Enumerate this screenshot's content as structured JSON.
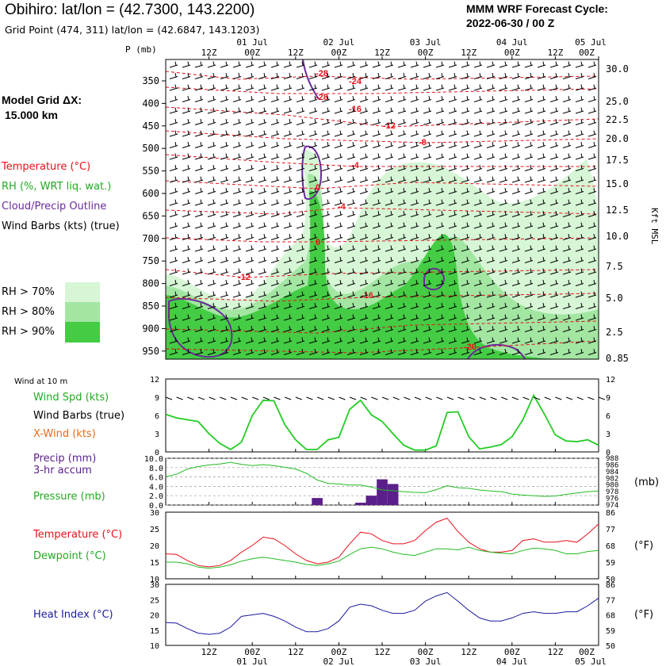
{
  "header": {
    "station": "Obihiro:  lat/lon = (42.7300, 143.2200)",
    "grid_point": "Grid Point (474, 311) lat/lon = (42.6847, 143.1203)",
    "cycle_label": "MMM WRF Forecast Cycle:",
    "cycle_value": "2022-06-30 / 00  Z",
    "model_grid_label": "Model Grid ΔX:",
    "model_grid_value": "15.000 km"
  },
  "legend": {
    "temperature": "Temperature (°C)",
    "rh": "RH (%, WRT liq. wat.)",
    "cloud": "Cloud/Precip Outline",
    "barbs": "Wind Barbs (kts) (true)",
    "rh70": "RH > 70%",
    "rh80": "RH > 80%",
    "rh90": "RH > 90%",
    "pressure_axis": "P (mb)",
    "height_axis": "Kft MSL",
    "wind10": "Wind at 10 m",
    "wind_spd": "Wind Spd (kts)",
    "wind_barbs": "Wind Barbs (true)",
    "xwind": "X-Wind (kts)",
    "precip": "Precip (mm)",
    "precip2": "3-hr accum",
    "pressure": "Pressure (mb)",
    "pressure_unit": "(mb)",
    "temp": "Temperature (°C)",
    "dewpoint": "Dewpoint (°C)",
    "heat_index": "Heat Index (°C)",
    "f_unit": "(°F)"
  },
  "colors": {
    "temp": "#e8101a",
    "rh": "#1ec81e",
    "cloud": "#6a2a9a",
    "precip": "#5a1f8a",
    "heat": "#1a1aa0",
    "dew": "#22bb22",
    "rh70": "#d6f6d6",
    "rh80": "#a2e6a2",
    "rh90": "#44cc44"
  },
  "chart_data": [
    {
      "type": "heatmap",
      "name": "time-height cross section",
      "time_labels_top": [
        "12Z",
        "00Z",
        "12Z",
        "00Z",
        "12Z",
        "00Z",
        "12Z",
        "00Z",
        "12Z",
        "00Z"
      ],
      "date_labels_top": [
        "01 Jul",
        "02 Jul",
        "03 Jul",
        "04 Jul",
        "05 Jul"
      ],
      "pressure_levels": [
        350,
        400,
        450,
        500,
        550,
        600,
        650,
        700,
        750,
        800,
        850,
        900,
        950
      ],
      "height_kft": [
        "30.0",
        "25.0",
        "22.5",
        "20.0",
        "17.5",
        "15.0",
        "12.5",
        "10.0",
        "7.5",
        "5.0",
        "2.5",
        "0.85"
      ],
      "temperature_contour_labels": [
        "-28",
        "-24",
        "-28",
        "-16",
        "-12",
        "-8",
        "-4",
        "0",
        "-4",
        "0",
        "-12",
        "-16",
        "-20"
      ]
    },
    {
      "type": "line",
      "name": "10 m wind speed",
      "ylim": [
        0,
        12
      ],
      "yticks": [
        0,
        3,
        6,
        9,
        12
      ],
      "hours": [
        0,
        3,
        6,
        9,
        12,
        15,
        18,
        21,
        24,
        27,
        30,
        33,
        36,
        39,
        42,
        45,
        48,
        51,
        54,
        57,
        60,
        63,
        66,
        69,
        72,
        75,
        78,
        81,
        84,
        87,
        90,
        93,
        96,
        99,
        102,
        105,
        108,
        111,
        114,
        117,
        120
      ],
      "wind_spd": [
        6.2,
        5.6,
        5.3,
        5.0,
        3.0,
        1.4,
        0.4,
        1.6,
        6.0,
        8.5,
        8.4,
        4.5,
        2.0,
        0.4,
        0.4,
        2.0,
        2.4,
        7.0,
        8.5,
        6.1,
        5.0,
        3.0,
        1.1,
        0.3,
        0.3,
        1.0,
        6.5,
        6.6,
        2.5,
        0.5,
        0.8,
        1.2,
        2.5,
        5.3,
        9.3,
        6.2,
        2.8,
        1.8,
        1.7,
        2.0,
        1.1
      ]
    },
    {
      "type": "bar",
      "name": "3-hr precip and pressure",
      "precip_ylim": [
        0,
        10
      ],
      "precip_ticks": [
        "0.0",
        "2.0",
        "4.0",
        "6.0",
        "8.0",
        "10.0"
      ],
      "pressure_ticks": [
        "974",
        "976",
        "978",
        "980",
        "982",
        "984",
        "986",
        "988"
      ],
      "pressure_ylim": [
        974,
        988
      ],
      "precip_hours": [
        42,
        54,
        57,
        60,
        63
      ],
      "precip_values": [
        1.5,
        0.5,
        2.0,
        5.5,
        4.5
      ],
      "pressure": [
        982.5,
        983.2,
        984.8,
        985.5,
        986.0,
        986.3,
        986.8,
        986.2,
        985.8,
        986.1,
        985.8,
        985.3,
        984.8,
        983.5,
        981.5,
        980.5,
        980.3,
        980.0,
        980.0,
        979.4,
        978.5,
        978.3,
        978.0,
        977.8,
        977.7,
        978.6,
        979.8,
        979.2,
        979.0,
        978.5,
        978.2,
        978.0,
        977.3,
        977.0,
        976.8,
        976.6,
        976.7,
        977.2,
        977.6,
        978.0,
        978.2
      ]
    },
    {
      "type": "line",
      "name": "temperature and dewpoint",
      "ylim": [
        10,
        30
      ],
      "yticks": [
        10,
        15,
        20,
        25,
        30
      ],
      "fticks": [
        50,
        59,
        68,
        77,
        86
      ],
      "temperature": [
        17.5,
        17.3,
        15.5,
        14.0,
        13.6,
        14.0,
        15.5,
        18.0,
        20.0,
        22.5,
        22.0,
        20.0,
        17.5,
        15.5,
        14.5,
        15.0,
        16.5,
        20.5,
        24.0,
        23.5,
        21.5,
        20.5,
        20.5,
        21.5,
        24.5,
        27.0,
        28.2,
        24.2,
        21.0,
        19.0,
        18.0,
        18.0,
        18.5,
        21.5,
        22.0,
        21.0,
        21.0,
        21.5,
        21.0,
        23.5,
        26.5
      ],
      "dewpoint": [
        15.0,
        15.0,
        14.5,
        13.5,
        13.2,
        13.5,
        14.2,
        15.3,
        16.0,
        16.5,
        16.0,
        15.5,
        15.0,
        14.3,
        14.0,
        14.5,
        15.3,
        17.3,
        19.0,
        19.5,
        19.0,
        18.0,
        17.3,
        17.0,
        18.0,
        19.0,
        19.0,
        18.7,
        19.5,
        18.5,
        18.0,
        17.7,
        17.5,
        18.5,
        19.2,
        19.0,
        18.5,
        17.5,
        17.5,
        18.2,
        18.5
      ]
    },
    {
      "type": "line",
      "name": "heat index",
      "ylim": [
        10,
        30
      ],
      "yticks": [
        10,
        15,
        20,
        25,
        30
      ],
      "fticks": [
        50,
        59,
        68,
        77,
        86
      ],
      "heat_index": [
        17.5,
        17.3,
        15.5,
        14.0,
        13.6,
        14.0,
        16.0,
        19.5,
        20.0,
        20.5,
        19.5,
        18.0,
        16.0,
        14.5,
        14.5,
        15.5,
        18.0,
        22.5,
        23.5,
        23.0,
        21.5,
        20.5,
        20.5,
        21.5,
        24.5,
        26.2,
        27.3,
        24.5,
        21.5,
        19.0,
        18.0,
        18.0,
        19.0,
        20.5,
        21.0,
        20.5,
        20.5,
        21.0,
        21.0,
        23.0,
        25.5
      ]
    }
  ]
}
